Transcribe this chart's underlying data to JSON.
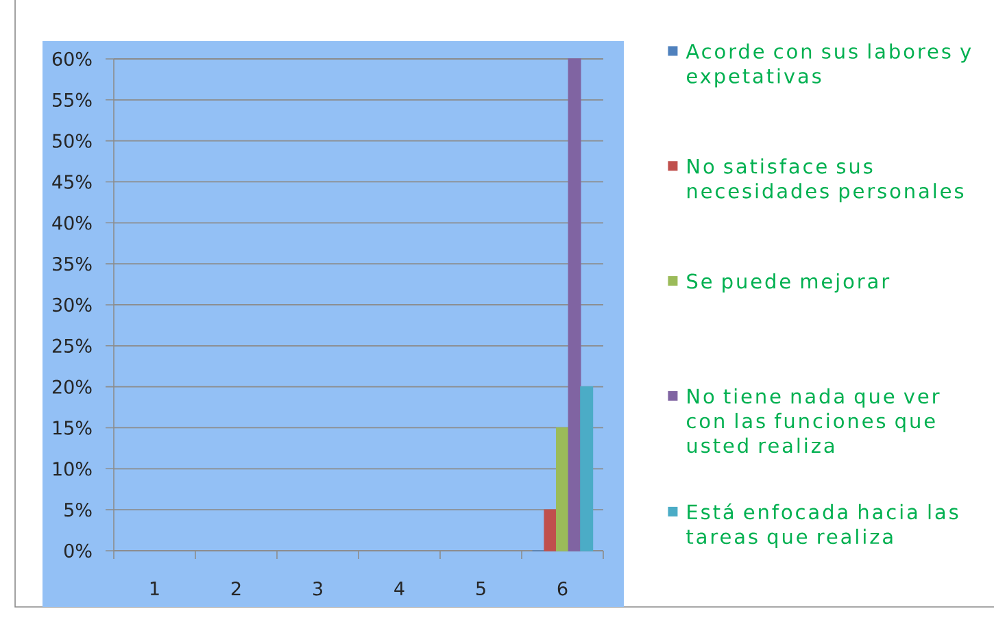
{
  "chart_data": {
    "type": "bar",
    "categories": [
      "1",
      "2",
      "3",
      "4",
      "5",
      "6"
    ],
    "series": [
      {
        "name": "Acorde con sus labores y expetativas",
        "color": "#4f81bd",
        "values": [
          null,
          null,
          null,
          null,
          null,
          0
        ]
      },
      {
        "name": "No satisface sus necesidades personales",
        "color": "#c0504d",
        "values": [
          null,
          null,
          null,
          null,
          null,
          5
        ]
      },
      {
        "name": "Se puede mejorar",
        "color": "#9bbb59",
        "values": [
          null,
          null,
          null,
          null,
          null,
          15
        ]
      },
      {
        "name": "No tiene nada que ver con las funciones que usted realiza",
        "color": "#8064a2",
        "values": [
          null,
          null,
          null,
          null,
          null,
          60
        ]
      },
      {
        "name": "Está enfocada hacia las tareas que realiza",
        "color": "#4bacc6",
        "values": [
          null,
          null,
          null,
          null,
          null,
          20
        ]
      }
    ],
    "ylim": [
      0,
      60
    ],
    "yticks": [
      {
        "value": 0,
        "label": "0%"
      },
      {
        "value": 5,
        "label": "5%"
      },
      {
        "value": 10,
        "label": "10%"
      },
      {
        "value": 15,
        "label": "15%"
      },
      {
        "value": 20,
        "label": "20%"
      },
      {
        "value": 25,
        "label": "25%"
      },
      {
        "value": 30,
        "label": "30%"
      },
      {
        "value": 35,
        "label": "35%"
      },
      {
        "value": 40,
        "label": "40%"
      },
      {
        "value": 45,
        "label": "45%"
      },
      {
        "value": 50,
        "label": "50%"
      },
      {
        "value": 55,
        "label": "55%"
      },
      {
        "value": 60,
        "label": "60%"
      }
    ],
    "grid": "y",
    "legend": "right"
  }
}
